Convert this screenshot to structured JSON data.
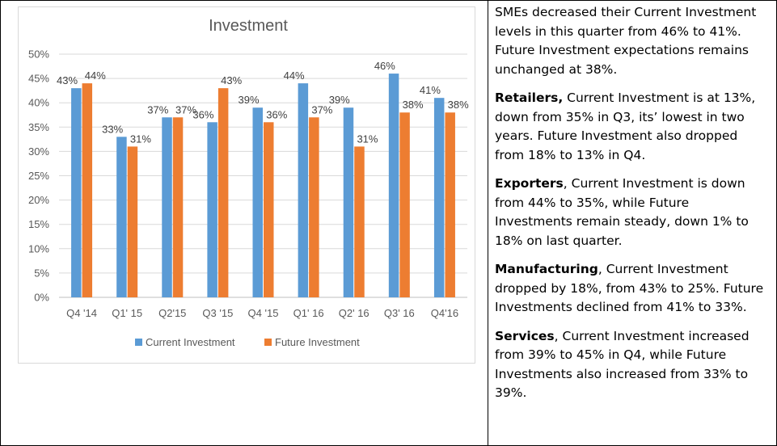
{
  "chart_data": {
    "type": "bar",
    "title": "Investment",
    "categories": [
      "Q4 '14",
      "Q1' 15",
      "Q2'15",
      "Q3 '15",
      "Q4 '15",
      "Q1' 16",
      "Q2' 16",
      "Q3' 16",
      "Q4'16"
    ],
    "series": [
      {
        "name": "Current Investment",
        "values": [
          43,
          33,
          37,
          36,
          39,
          44,
          39,
          46,
          41
        ],
        "color": "#5b9bd5"
      },
      {
        "name": "Future Investment",
        "values": [
          44,
          31,
          37,
          43,
          36,
          37,
          31,
          38,
          38
        ],
        "color": "#ed7d31"
      }
    ],
    "value_labels": [
      [
        "43%",
        "33%",
        "37%",
        "36%",
        "39%",
        "44%",
        "39%",
        "46%",
        "41%"
      ],
      [
        "44%",
        "31%",
        "37%",
        "43%",
        "36%",
        "37%",
        "31%",
        "38%",
        "38%"
      ]
    ],
    "yticks": [
      "0%",
      "5%",
      "10%",
      "15%",
      "20%",
      "25%",
      "30%",
      "35%",
      "40%",
      "45%",
      "50%"
    ],
    "ylim": [
      0,
      50
    ],
    "grid": true,
    "legend_position": "bottom"
  },
  "commentary": {
    "intro": "SMEs decreased their Current Investment levels in this quarter from 46% to 41%. Future Investment expectations remains unchanged at 38%.",
    "sections": [
      {
        "heading": "Retailers,",
        "text": " Current Investment is at 13%, down from 35% in Q3, its’ lowest in two years. Future Investment also dropped from 18% to 13% in Q4."
      },
      {
        "heading": "Exporters",
        "text": ", Current Investment is down from 44% to 35%, while Future Investments remain steady, down 1% to 18% on last quarter."
      },
      {
        "heading": "Manufacturing",
        "text": ", Current Investment dropped by 18%, from 43% to 25%. Future Investments declined from 41% to 33%."
      },
      {
        "heading": "Services",
        "text": ", Current Investment increased from 39% to 45% in Q4, while Future Investments also increased from 33% to 39%."
      }
    ]
  }
}
